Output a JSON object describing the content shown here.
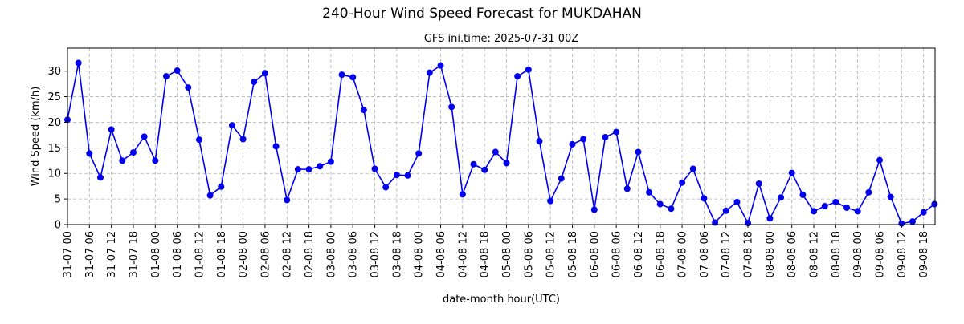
{
  "title": "240-Hour Wind Speed Forecast for MUKDAHAN",
  "subtitle": "GFS ini.time: 2025-07-31 00Z",
  "colors": {
    "series": "#0000ee",
    "grid": "#b0b0b0",
    "axis": "#000000"
  },
  "chart_data": {
    "type": "line",
    "title": "240-Hour Wind Speed Forecast for MUKDAHAN",
    "subtitle": "GFS ini.time: 2025-07-31 00Z",
    "xlabel": "date-month hour(UTC)",
    "ylabel": "Wind Speed (km/h)",
    "ylim": [
      0,
      34.5
    ],
    "yticks": [
      0,
      5,
      10,
      15,
      20,
      25,
      30
    ],
    "grid": true,
    "x_step_hours": 3,
    "xtick_labels": [
      "31-07 00",
      "31-07 06",
      "31-07 12",
      "31-07 18",
      "01-08 00",
      "01-08 06",
      "01-08 12",
      "01-08 18",
      "02-08 00",
      "02-08 06",
      "02-08 12",
      "02-08 18",
      "03-08 00",
      "03-08 06",
      "03-08 12",
      "03-08 18",
      "04-08 00",
      "04-08 06",
      "04-08 12",
      "04-08 18",
      "05-08 00",
      "05-08 06",
      "05-08 12",
      "05-08 18",
      "06-08 00",
      "06-08 06",
      "06-08 12",
      "06-08 18",
      "07-08 00",
      "07-08 06",
      "07-08 12",
      "07-08 18",
      "08-08 00",
      "08-08 06",
      "08-08 12",
      "08-08 18",
      "09-08 00",
      "09-08 06",
      "09-08 12",
      "09-08 18"
    ],
    "series": [
      {
        "values": [
          20.5,
          31.6,
          13.9,
          9.2,
          18.6,
          12.5,
          14.1,
          17.2,
          12.5,
          29.0,
          30.1,
          26.8,
          16.6,
          5.7,
          7.4,
          19.4,
          16.7,
          27.9,
          29.6,
          15.3,
          4.8,
          10.8,
          10.8,
          11.4,
          12.3,
          29.3,
          28.8,
          22.4,
          10.9,
          7.3,
          9.7,
          9.6,
          13.9,
          29.7,
          31.1,
          23.0,
          5.9,
          11.8,
          10.7,
          14.2,
          12.0,
          29.0,
          30.3,
          16.3,
          4.6,
          9.0,
          15.7,
          16.7,
          2.9,
          17.1,
          18.1,
          7.0,
          14.2,
          6.3,
          4.0,
          3.1,
          8.2,
          10.9,
          5.1,
          0.4,
          2.7,
          4.4,
          0.3,
          8.0,
          1.2,
          5.3,
          10.1,
          5.8,
          2.6,
          3.6,
          4.4,
          3.3,
          2.6,
          6.3,
          12.6,
          5.4,
          0.2,
          0.6,
          2.4,
          4.0
        ]
      }
    ]
  }
}
